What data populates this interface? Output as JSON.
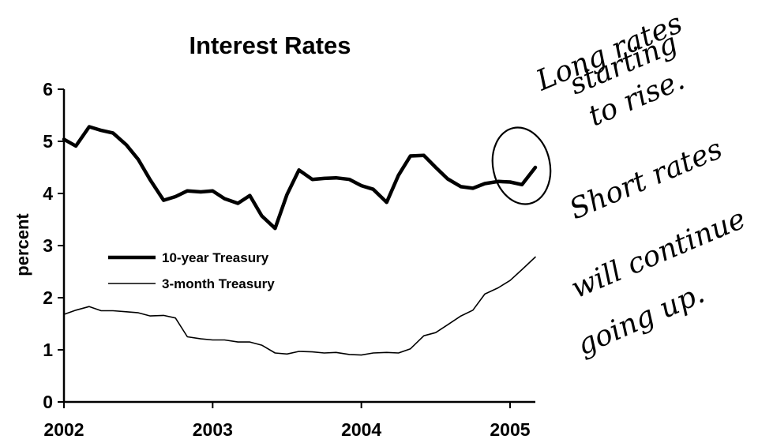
{
  "chart_data": {
    "type": "line",
    "title": "Interest Rates",
    "xlabel": "",
    "ylabel": "percent",
    "xlim": [
      2002,
      2005.17
    ],
    "ylim": [
      0,
      6
    ],
    "xticks": [
      "2002",
      "2003",
      "2004",
      "2005"
    ],
    "yticks": [
      "0",
      "1",
      "2",
      "3",
      "4",
      "5",
      "6"
    ],
    "grid": false,
    "legend_position": "center-left",
    "series": [
      {
        "name": "10-year Treasury",
        "style": "thick",
        "color": "#000000",
        "x": [
          2002.0,
          2002.08,
          2002.17,
          2002.25,
          2002.33,
          2002.42,
          2002.5,
          2002.58,
          2002.67,
          2002.75,
          2002.83,
          2002.92,
          2003.0,
          2003.08,
          2003.17,
          2003.25,
          2003.33,
          2003.42,
          2003.5,
          2003.58,
          2003.67,
          2003.75,
          2003.83,
          2003.92,
          2004.0,
          2004.08,
          2004.17,
          2004.25,
          2004.33,
          2004.42,
          2004.5,
          2004.58,
          2004.67,
          2004.75,
          2004.83,
          2004.92,
          2005.0,
          2005.08,
          2005.17
        ],
        "values": [
          5.04,
          4.91,
          5.28,
          5.21,
          5.16,
          4.93,
          4.65,
          4.26,
          3.87,
          3.94,
          4.05,
          4.03,
          4.05,
          3.9,
          3.81,
          3.96,
          3.57,
          3.33,
          3.98,
          4.45,
          4.27,
          4.29,
          4.3,
          4.27,
          4.15,
          4.08,
          3.83,
          4.35,
          4.72,
          4.73,
          4.5,
          4.28,
          4.13,
          4.1,
          4.19,
          4.23,
          4.22,
          4.17,
          4.5
        ]
      },
      {
        "name": "3-month Treasury",
        "style": "thin",
        "color": "#000000",
        "x": [
          2002.0,
          2002.08,
          2002.17,
          2002.25,
          2002.33,
          2002.42,
          2002.5,
          2002.58,
          2002.67,
          2002.75,
          2002.83,
          2002.92,
          2003.0,
          2003.08,
          2003.17,
          2003.25,
          2003.33,
          2003.42,
          2003.5,
          2003.58,
          2003.67,
          2003.75,
          2003.83,
          2003.92,
          2004.0,
          2004.08,
          2004.17,
          2004.25,
          2004.33,
          2004.42,
          2004.5,
          2004.58,
          2004.67,
          2004.75,
          2004.83,
          2004.92,
          2005.0,
          2005.08,
          2005.17
        ],
        "values": [
          1.68,
          1.76,
          1.83,
          1.75,
          1.75,
          1.73,
          1.71,
          1.65,
          1.66,
          1.61,
          1.25,
          1.21,
          1.19,
          1.19,
          1.15,
          1.15,
          1.09,
          0.94,
          0.92,
          0.97,
          0.96,
          0.94,
          0.95,
          0.91,
          0.9,
          0.94,
          0.95,
          0.94,
          1.02,
          1.27,
          1.33,
          1.48,
          1.65,
          1.76,
          2.07,
          2.19,
          2.33,
          2.54,
          2.78
        ]
      }
    ],
    "annotations": [
      {
        "type": "handwritten-note",
        "lines": [
          "Long rates",
          "starting",
          "to rise.",
          "Short rates",
          "will continue",
          "going up."
        ]
      },
      {
        "type": "handwritten-circle",
        "target_series": "10-year Treasury",
        "x_range": [
          2004.92,
          2005.17
        ]
      }
    ]
  }
}
